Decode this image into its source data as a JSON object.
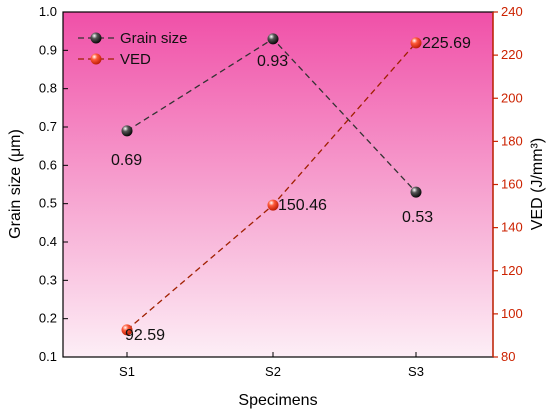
{
  "chart_data": {
    "type": "line",
    "categories": [
      "S1",
      "S2",
      "S3"
    ],
    "xlabel": "Specimens",
    "y_left": {
      "label": "Grain size (μm)",
      "range": [
        0.1,
        1.0
      ],
      "ticks": [
        "0.1",
        "0.2",
        "0.3",
        "0.4",
        "0.5",
        "0.6",
        "0.7",
        "0.8",
        "0.9",
        "1.0"
      ]
    },
    "y_right": {
      "label": "VED (J/mm³)",
      "range": [
        80,
        240
      ],
      "ticks": [
        "80",
        "100",
        "120",
        "140",
        "160",
        "180",
        "200",
        "220",
        "240"
      ]
    },
    "series": [
      {
        "name": "Grain size",
        "axis": "left",
        "values": [
          0.69,
          0.93,
          0.53
        ],
        "labels": [
          "0.69",
          "0.93",
          "0.53"
        ],
        "color": "#000000"
      },
      {
        "name": "VED",
        "axis": "right",
        "values": [
          92.59,
          150.46,
          225.69
        ],
        "labels": [
          "92.59",
          "150.46",
          "225.69"
        ],
        "color": "#cc2200"
      }
    ],
    "legend": "top-left",
    "grid": false,
    "background": "pink-gradient"
  }
}
